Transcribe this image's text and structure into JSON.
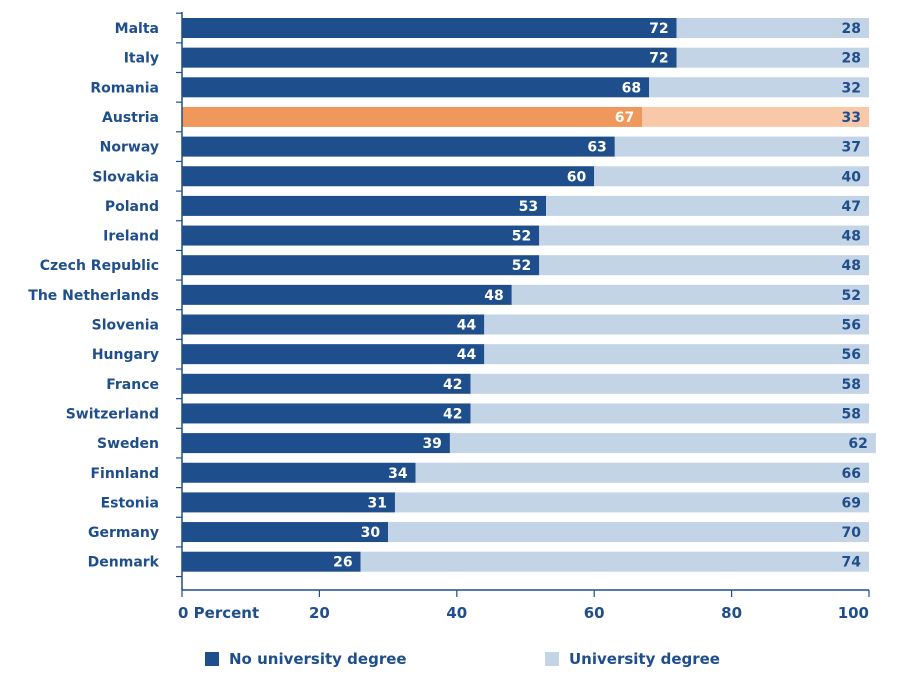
{
  "chart_data": {
    "type": "bar",
    "orientation": "horizontal",
    "stacked": true,
    "categories": [
      "Malta",
      "Italy",
      "Romania",
      "Austria",
      "Norway",
      "Slovakia",
      "Poland",
      "Ireland",
      "Czech Republic",
      "The Netherlands",
      "Slovenia",
      "Hungary",
      "France",
      "Switzerland",
      "Sweden",
      "Finnland",
      "Estonia",
      "Germany",
      "Denmark"
    ],
    "series": [
      {
        "name": "No university degree",
        "values": [
          72,
          72,
          68,
          67,
          63,
          60,
          53,
          52,
          52,
          48,
          44,
          44,
          42,
          42,
          39,
          34,
          31,
          30,
          26
        ]
      },
      {
        "name": "University degree",
        "values": [
          28,
          28,
          32,
          33,
          37,
          40,
          47,
          48,
          48,
          52,
          56,
          56,
          58,
          58,
          62,
          66,
          69,
          70,
          74
        ]
      }
    ],
    "highlight_category": "Austria",
    "xlim": [
      0,
      100
    ],
    "x_ticks": [
      "0 Percent",
      "20",
      "40",
      "60",
      "80",
      "100"
    ],
    "legend_position": "bottom",
    "grid": false
  },
  "colors": {
    "no_degree": "#1f4e8c",
    "degree": "#c3d4e6",
    "highlight_no_degree": "#f0975c",
    "highlight_degree": "#f8c9a8",
    "text": "#1f4e8c",
    "axis": "#1f4e8c"
  },
  "legend": {
    "no_degree_label": "No university degree",
    "degree_label": "University degree"
  }
}
